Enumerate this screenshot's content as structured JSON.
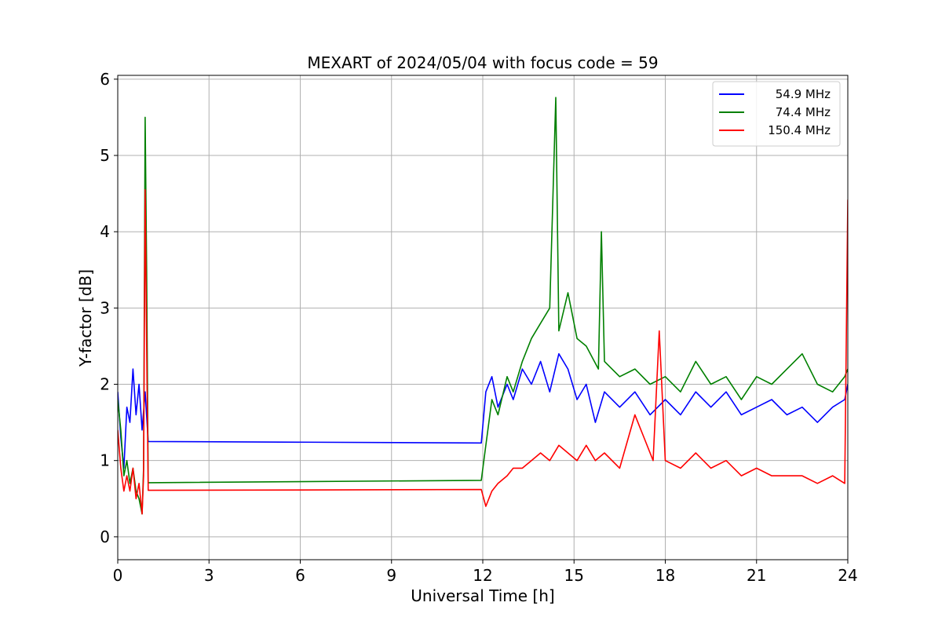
{
  "chart_data": {
    "type": "line",
    "title": "MEXART of 2024/05/04 with focus code = 59",
    "xlabel": "Universal Time [h]",
    "ylabel": "Y-factor [dB]",
    "xlim": [
      0,
      24
    ],
    "ylim": [
      -0.3,
      6.05
    ],
    "xticks": [
      0,
      3,
      6,
      9,
      12,
      15,
      18,
      21,
      24
    ],
    "yticks": [
      0,
      1,
      2,
      3,
      4,
      5,
      6
    ],
    "grid": true,
    "legend_position": "top-right",
    "series": [
      {
        "name": "54.9 MHz",
        "color": "#0000ff",
        "points": [
          [
            0.0,
            1.9
          ],
          [
            0.1,
            1.3
          ],
          [
            0.2,
            0.9
          ],
          [
            0.3,
            1.7
          ],
          [
            0.4,
            1.5
          ],
          [
            0.5,
            2.2
          ],
          [
            0.6,
            1.6
          ],
          [
            0.7,
            2.0
          ],
          [
            0.8,
            1.4
          ],
          [
            0.9,
            1.9
          ],
          [
            1.0,
            1.25
          ],
          [
            11.95,
            1.23
          ],
          [
            12.1,
            1.9
          ],
          [
            12.3,
            2.1
          ],
          [
            12.5,
            1.7
          ],
          [
            12.8,
            2.0
          ],
          [
            13.0,
            1.8
          ],
          [
            13.3,
            2.2
          ],
          [
            13.6,
            2.0
          ],
          [
            13.9,
            2.3
          ],
          [
            14.2,
            1.9
          ],
          [
            14.5,
            2.4
          ],
          [
            14.8,
            2.2
          ],
          [
            15.1,
            1.8
          ],
          [
            15.4,
            2.0
          ],
          [
            15.7,
            1.5
          ],
          [
            16.0,
            1.9
          ],
          [
            16.5,
            1.7
          ],
          [
            17.0,
            1.9
          ],
          [
            17.5,
            1.6
          ],
          [
            18.0,
            1.8
          ],
          [
            18.5,
            1.6
          ],
          [
            19.0,
            1.9
          ],
          [
            19.5,
            1.7
          ],
          [
            20.0,
            1.9
          ],
          [
            20.5,
            1.6
          ],
          [
            21.0,
            1.7
          ],
          [
            21.5,
            1.8
          ],
          [
            22.0,
            1.6
          ],
          [
            22.5,
            1.7
          ],
          [
            23.0,
            1.5
          ],
          [
            23.5,
            1.7
          ],
          [
            23.9,
            1.8
          ],
          [
            24.0,
            2.0
          ]
        ]
      },
      {
        "name": "74.4 MHz",
        "color": "#008000",
        "points": [
          [
            0.0,
            1.8
          ],
          [
            0.1,
            1.4
          ],
          [
            0.2,
            0.8
          ],
          [
            0.3,
            1.0
          ],
          [
            0.4,
            0.7
          ],
          [
            0.5,
            0.9
          ],
          [
            0.6,
            0.6
          ],
          [
            0.7,
            0.5
          ],
          [
            0.8,
            0.3
          ],
          [
            0.85,
            0.9
          ],
          [
            0.9,
            5.5
          ],
          [
            0.95,
            3.5
          ],
          [
            1.0,
            0.71
          ],
          [
            11.95,
            0.74
          ],
          [
            12.1,
            1.2
          ],
          [
            12.3,
            1.8
          ],
          [
            12.5,
            1.6
          ],
          [
            12.8,
            2.1
          ],
          [
            13.0,
            1.9
          ],
          [
            13.3,
            2.3
          ],
          [
            13.6,
            2.6
          ],
          [
            13.9,
            2.8
          ],
          [
            14.2,
            3.0
          ],
          [
            14.4,
            5.76
          ],
          [
            14.5,
            2.7
          ],
          [
            14.8,
            3.2
          ],
          [
            15.1,
            2.6
          ],
          [
            15.4,
            2.5
          ],
          [
            15.8,
            2.2
          ],
          [
            15.9,
            4.0
          ],
          [
            16.0,
            2.3
          ],
          [
            16.5,
            2.1
          ],
          [
            17.0,
            2.2
          ],
          [
            17.5,
            2.0
          ],
          [
            18.0,
            2.1
          ],
          [
            18.5,
            1.9
          ],
          [
            19.0,
            2.3
          ],
          [
            19.5,
            2.0
          ],
          [
            20.0,
            2.1
          ],
          [
            20.5,
            1.8
          ],
          [
            21.0,
            2.1
          ],
          [
            21.5,
            2.0
          ],
          [
            22.0,
            2.2
          ],
          [
            22.5,
            2.4
          ],
          [
            23.0,
            2.0
          ],
          [
            23.5,
            1.9
          ],
          [
            23.9,
            2.1
          ],
          [
            24.0,
            2.2
          ]
        ]
      },
      {
        "name": "150.4 MHz",
        "color": "#ff0000",
        "points": [
          [
            0.0,
            1.4
          ],
          [
            0.1,
            0.9
          ],
          [
            0.2,
            0.6
          ],
          [
            0.3,
            0.8
          ],
          [
            0.4,
            0.6
          ],
          [
            0.5,
            0.9
          ],
          [
            0.6,
            0.5
          ],
          [
            0.7,
            0.7
          ],
          [
            0.8,
            0.3
          ],
          [
            0.85,
            0.8
          ],
          [
            0.9,
            4.55
          ],
          [
            0.95,
            2.5
          ],
          [
            1.0,
            0.61
          ],
          [
            11.95,
            0.62
          ],
          [
            12.1,
            0.4
          ],
          [
            12.3,
            0.6
          ],
          [
            12.5,
            0.7
          ],
          [
            12.8,
            0.8
          ],
          [
            13.0,
            0.9
          ],
          [
            13.3,
            0.9
          ],
          [
            13.6,
            1.0
          ],
          [
            13.9,
            1.1
          ],
          [
            14.2,
            1.0
          ],
          [
            14.5,
            1.2
          ],
          [
            14.8,
            1.1
          ],
          [
            15.1,
            1.0
          ],
          [
            15.4,
            1.2
          ],
          [
            15.7,
            1.0
          ],
          [
            16.0,
            1.1
          ],
          [
            16.5,
            0.9
          ],
          [
            17.0,
            1.6
          ],
          [
            17.3,
            1.3
          ],
          [
            17.6,
            1.0
          ],
          [
            17.8,
            2.7
          ],
          [
            18.0,
            1.0
          ],
          [
            18.5,
            0.9
          ],
          [
            19.0,
            1.1
          ],
          [
            19.5,
            0.9
          ],
          [
            20.0,
            1.0
          ],
          [
            20.5,
            0.8
          ],
          [
            21.0,
            0.9
          ],
          [
            21.5,
            0.8
          ],
          [
            22.0,
            0.8
          ],
          [
            22.5,
            0.8
          ],
          [
            23.0,
            0.7
          ],
          [
            23.5,
            0.8
          ],
          [
            23.9,
            0.7
          ],
          [
            24.0,
            4.42
          ]
        ]
      }
    ]
  }
}
